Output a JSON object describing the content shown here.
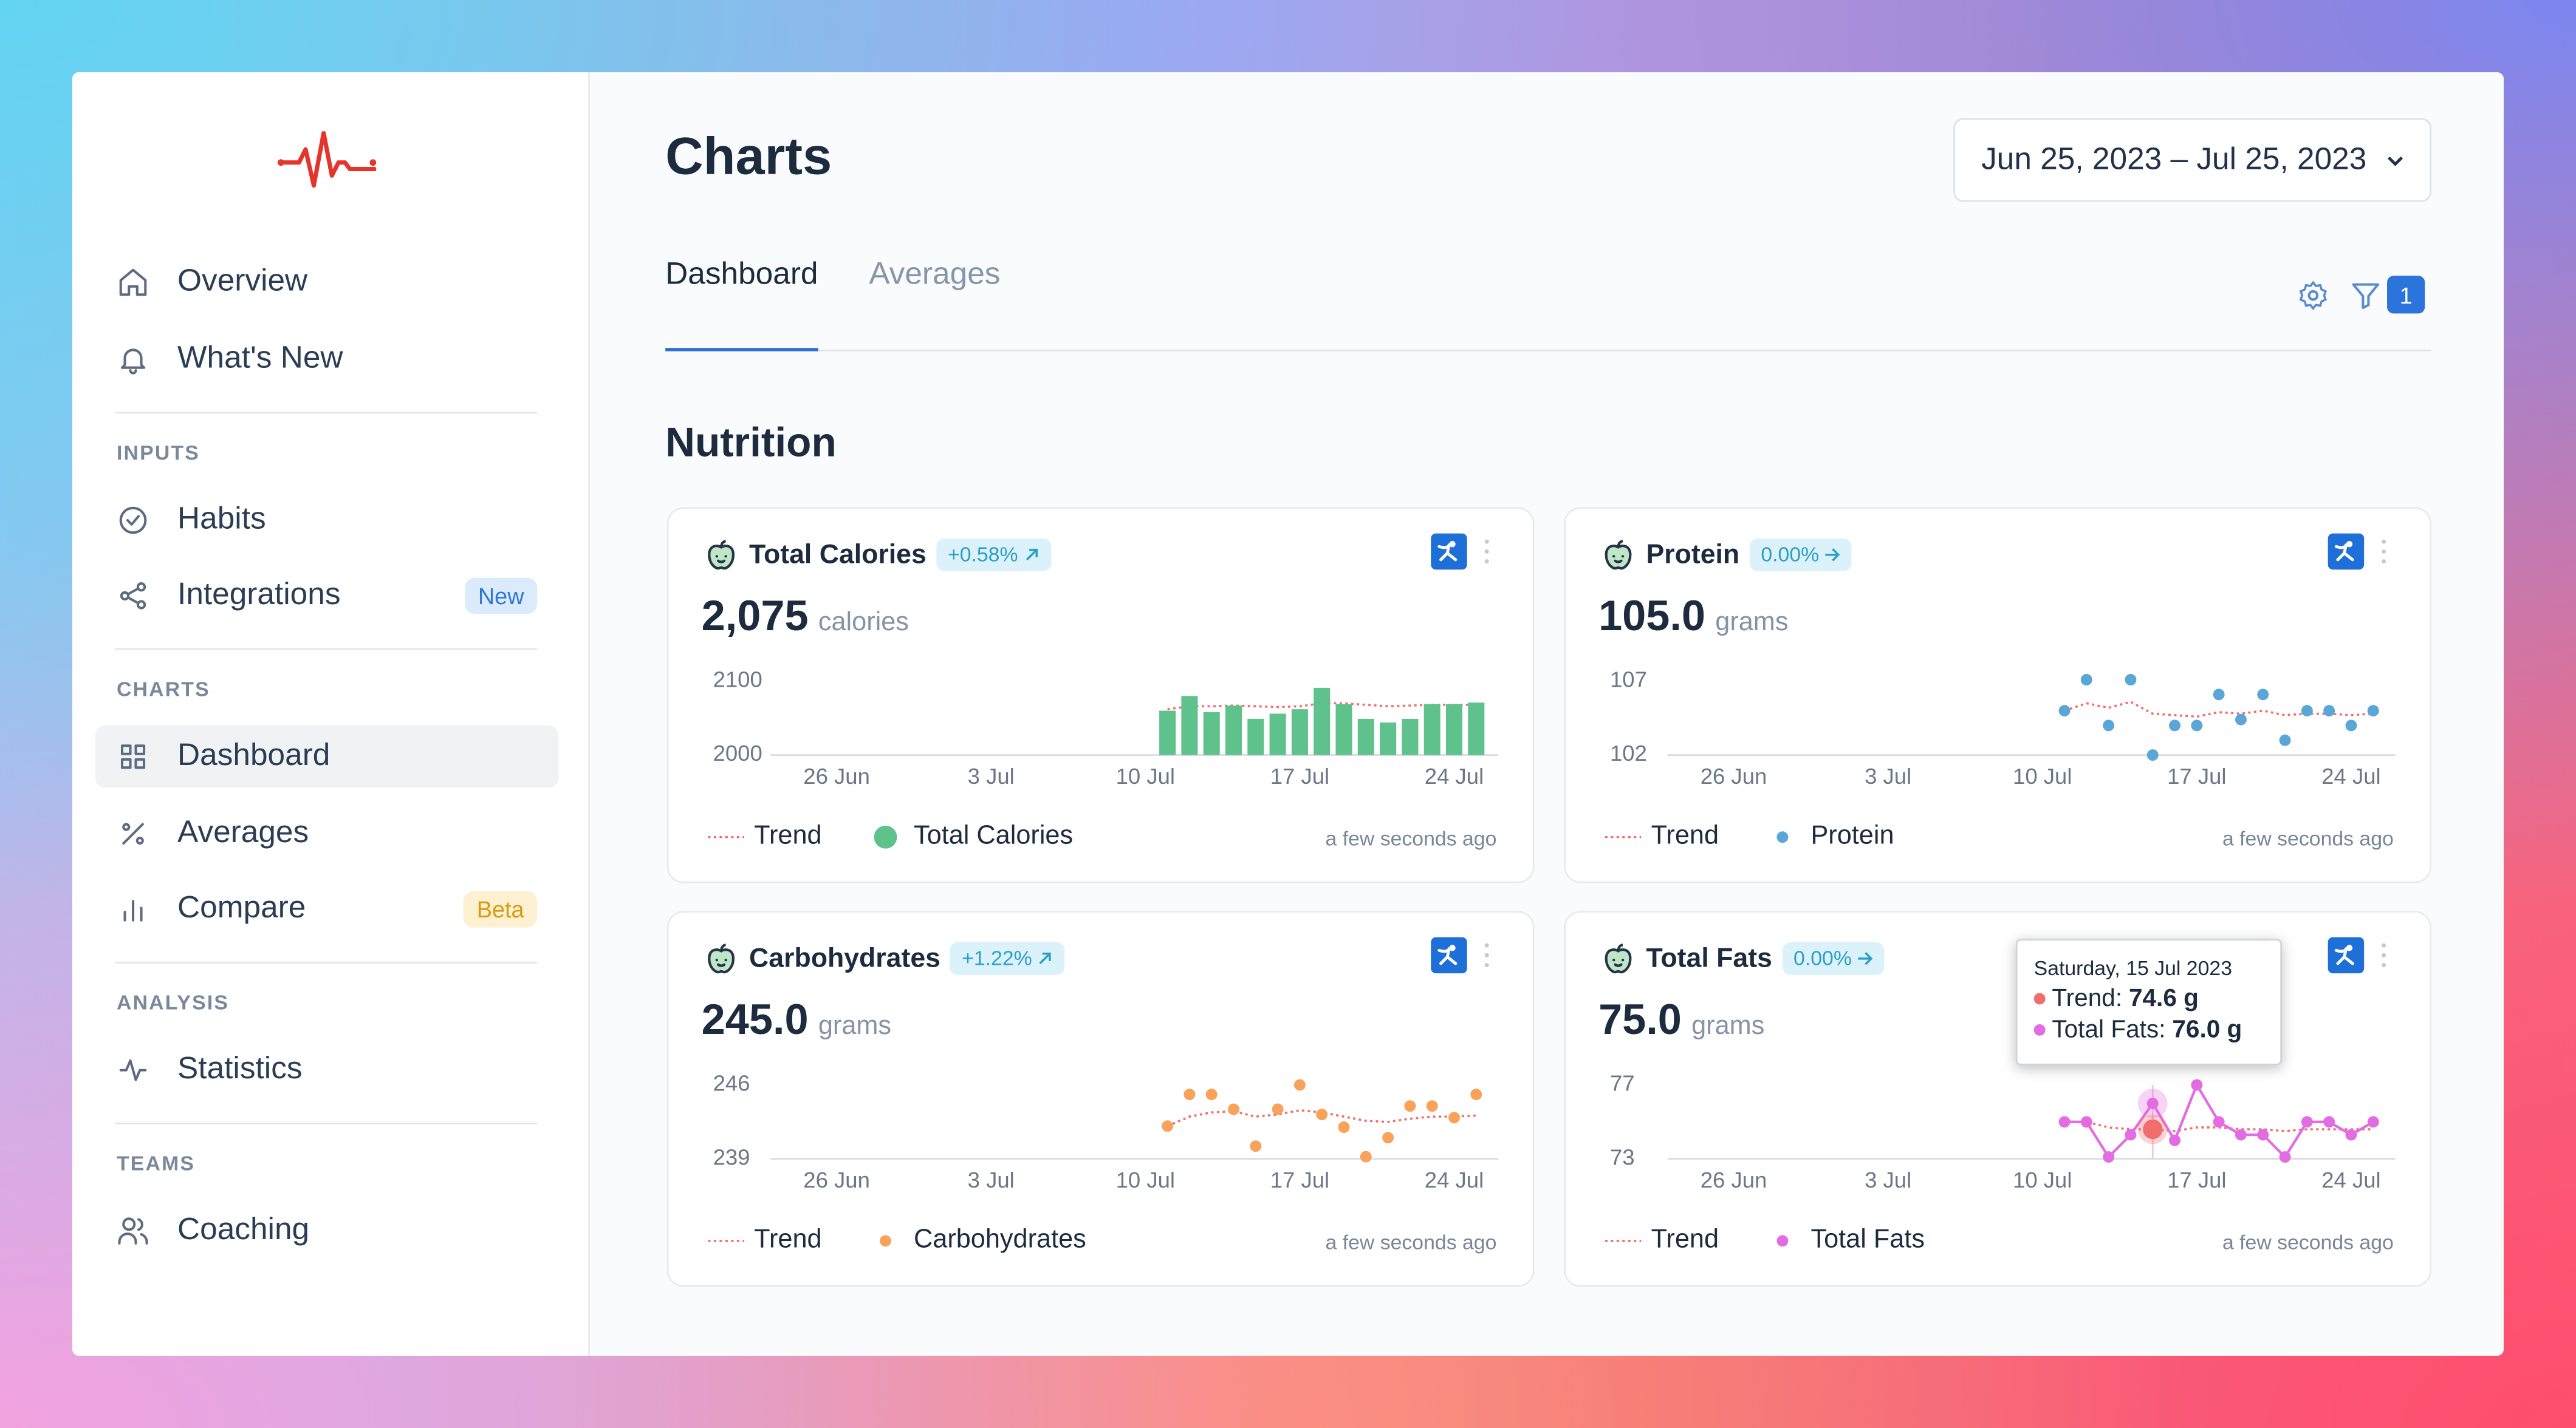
{
  "sidebar": {
    "items": [
      {
        "label": "Overview"
      },
      {
        "label": "What's New"
      }
    ],
    "groups": [
      {
        "title": "INPUTS",
        "items": [
          {
            "label": "Habits"
          },
          {
            "label": "Integrations",
            "badge": "New",
            "badge_color": "#2f78d6",
            "badge_bg": "#dcebfb"
          }
        ]
      },
      {
        "title": "CHARTS",
        "items": [
          {
            "label": "Dashboard",
            "active": true
          },
          {
            "label": "Averages"
          },
          {
            "label": "Compare",
            "badge": "Beta",
            "badge_color": "#d99a10",
            "badge_bg": "#fdf1d2"
          }
        ]
      },
      {
        "title": "ANALYSIS",
        "items": [
          {
            "label": "Statistics"
          }
        ]
      },
      {
        "title": "TEAMS",
        "items": [
          {
            "label": "Coaching"
          }
        ]
      }
    ]
  },
  "header": {
    "title": "Charts",
    "date_range": "Jun 25, 2023 – Jul 25, 2023",
    "tabs": [
      "Dashboard",
      "Averages"
    ],
    "active_tab": 0,
    "filter_count": 1
  },
  "section_title": "Nutrition",
  "cards": [
    {
      "title": "Total Calories",
      "change": "+0.58%",
      "value": "2,075",
      "unit": "calories",
      "updated": "a few seconds ago",
      "chart_data": {
        "type": "bar",
        "x": [
          "11 Jul",
          "12 Jul",
          "13 Jul",
          "14 Jul",
          "15 Jul",
          "16 Jul",
          "17 Jul",
          "18 Jul",
          "19 Jul",
          "20 Jul",
          "21 Jul",
          "22 Jul",
          "23 Jul",
          "24 Jul",
          "25 Jul"
        ],
        "series": [
          {
            "name": "Trend",
            "color": "#f26d6d",
            "dashed": true,
            "values": [
              2062,
              2066,
              2066,
              2067,
              2066,
              2065,
              2066,
              2070,
              2070,
              2068,
              2066,
              2067,
              2068,
              2068,
              2068
            ]
          },
          {
            "name": "Total Calories",
            "color": "#5fc28c",
            "values": [
              2060,
              2080,
              2058,
              2067,
              2049,
              2056,
              2062,
              2091,
              2069,
              2049,
              2044,
              2049,
              2069,
              2069,
              2071
            ]
          }
        ],
        "xlim": [
          "23 Jun",
          "26 Jul"
        ],
        "xticks": [
          "26 Jun",
          "3 Jul",
          "10 Jul",
          "17 Jul",
          "24 Jul"
        ],
        "ylim": [
          2000,
          2100
        ],
        "yticks": [
          2000,
          2100
        ]
      }
    },
    {
      "title": "Protein",
      "change": "0.00%",
      "value": "105.0",
      "unit": "grams",
      "updated": "a few seconds ago",
      "chart_data": {
        "type": "scatter",
        "x": [
          "11 Jul",
          "12 Jul",
          "13 Jul",
          "14 Jul",
          "15 Jul",
          "16 Jul",
          "17 Jul",
          "18 Jul",
          "19 Jul",
          "20 Jul",
          "21 Jul",
          "22 Jul",
          "23 Jul",
          "24 Jul",
          "25 Jul"
        ],
        "series": [
          {
            "name": "Trend",
            "color": "#f26d6d",
            "dashed": true,
            "values": [
              105.0,
              105.5,
              105.2,
              105.6,
              104.8,
              104.7,
              104.6,
              104.9,
              104.8,
              105.0,
              104.7,
              104.8,
              104.8,
              104.7,
              104.8
            ]
          },
          {
            "name": "Protein",
            "color": "#5ba6d8",
            "values": [
              105.0,
              107.1,
              104.0,
              107.1,
              102.0,
              104.0,
              104.0,
              106.1,
              104.4,
              106.1,
              103.0,
              105.0,
              105.0,
              104.0,
              105.0
            ]
          }
        ],
        "xlim": [
          "23 Jun",
          "26 Jul"
        ],
        "xticks": [
          "26 Jun",
          "3 Jul",
          "10 Jul",
          "17 Jul",
          "24 Jul"
        ],
        "ylim": [
          102,
          107
        ],
        "yticks": [
          102,
          107
        ]
      }
    },
    {
      "title": "Carbohydrates",
      "change": "+1.22%",
      "value": "245.0",
      "unit": "grams",
      "updated": "a few seconds ago",
      "chart_data": {
        "type": "scatter",
        "x": [
          "11 Jul",
          "12 Jul",
          "13 Jul",
          "14 Jul",
          "15 Jul",
          "16 Jul",
          "17 Jul",
          "18 Jul",
          "19 Jul",
          "20 Jul",
          "21 Jul",
          "22 Jul",
          "23 Jul",
          "24 Jul",
          "25 Jul"
        ],
        "series": [
          {
            "name": "Trend",
            "color": "#f26d6d",
            "dashed": true,
            "values": [
              242.1,
              243.0,
              243.4,
              243.5,
              243.0,
              243.2,
              243.6,
              243.4,
              243.0,
              242.6,
              242.5,
              242.8,
              243.0,
              243.0,
              243.1
            ]
          },
          {
            "name": "Carbohydrates",
            "color": "#f9a25a",
            "values": [
              242.1,
              245.1,
              245.1,
              243.7,
              240.2,
              243.7,
              246.0,
              243.2,
              242.0,
              239.2,
              241.0,
              244.0,
              244.0,
              242.9,
              245.1
            ]
          }
        ],
        "xlim": [
          "23 Jun",
          "26 Jul"
        ],
        "xticks": [
          "26 Jun",
          "3 Jul",
          "10 Jul",
          "17 Jul",
          "24 Jul"
        ],
        "ylim": [
          239,
          246
        ],
        "yticks": [
          239,
          246
        ]
      }
    },
    {
      "title": "Total Fats",
      "change": "0.00%",
      "value": "75.0",
      "unit": "grams",
      "updated": "a few seconds ago",
      "tooltip": {
        "title": "Saturday, 15 Jul 2023",
        "rows": [
          {
            "label": "Trend:",
            "value": "74.6 g"
          },
          {
            "label": "Total Fats:",
            "value": "76.0 g"
          }
        ]
      },
      "chart_data": {
        "type": "line",
        "x": [
          "11 Jul",
          "12 Jul",
          "13 Jul",
          "14 Jul",
          "15 Jul",
          "16 Jul",
          "17 Jul",
          "18 Jul",
          "19 Jul",
          "20 Jul",
          "21 Jul",
          "22 Jul",
          "23 Jul",
          "24 Jul",
          "25 Jul"
        ],
        "series": [
          {
            "name": "Trend",
            "color": "#f26d6d",
            "dashed": true,
            "values": [
              75.0,
              75.0,
              74.7,
              74.6,
              74.6,
              74.5,
              74.7,
              74.7,
              74.6,
              74.6,
              74.5,
              74.6,
              74.6,
              74.6,
              74.6
            ]
          },
          {
            "name": "Total Fats",
            "color": "#e46ce2",
            "values": [
              75.0,
              75.0,
              73.1,
              74.3,
              76.0,
              74.0,
              77.0,
              75.0,
              74.3,
              74.3,
              73.1,
              75.0,
              75.0,
              74.3,
              75.0
            ]
          }
        ],
        "xlim": [
          "23 Jun",
          "26 Jul"
        ],
        "xticks": [
          "26 Jun",
          "3 Jul",
          "10 Jul",
          "17 Jul",
          "24 Jul"
        ],
        "ylim": [
          73,
          77
        ],
        "yticks": [
          73,
          77
        ]
      }
    }
  ]
}
